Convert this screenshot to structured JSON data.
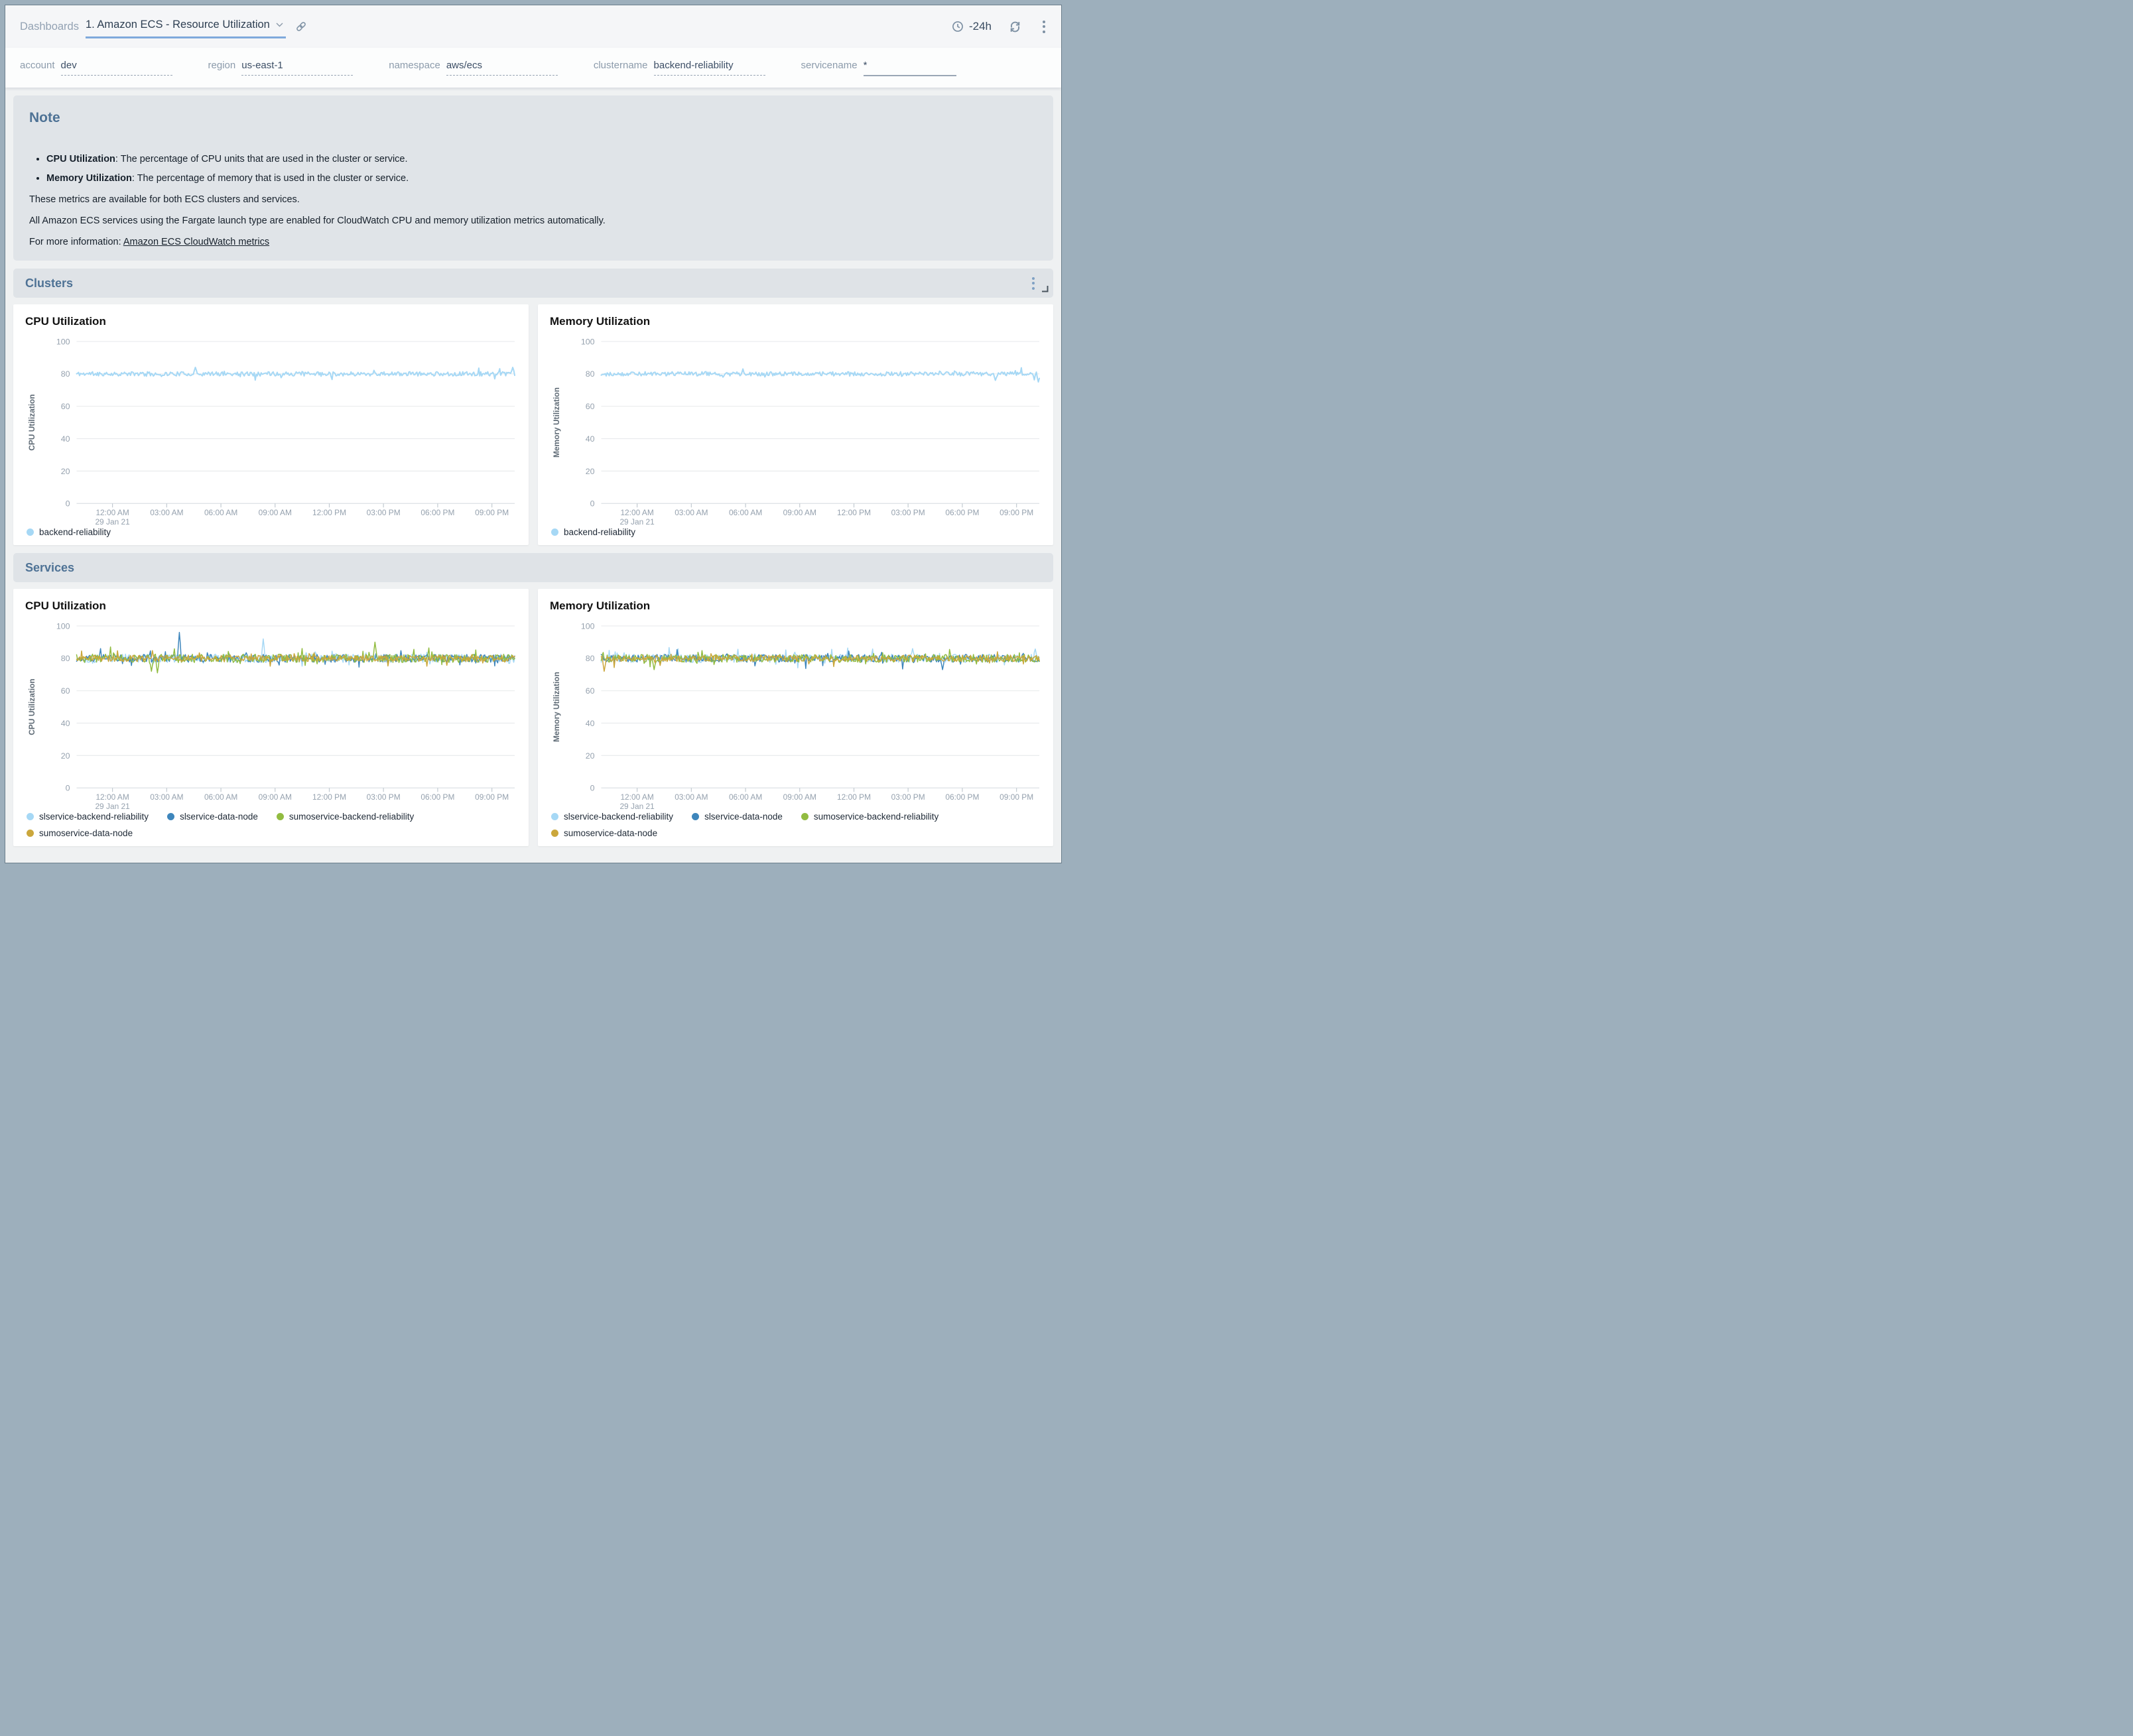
{
  "header": {
    "breadcrumb": "Dashboards",
    "title": "1. Amazon ECS - Resource Utilization",
    "time_range": "-24h",
    "icons": [
      "chevron-down-icon",
      "link-icon",
      "clock-icon",
      "refresh-icon",
      "kebab-menu-icon"
    ]
  },
  "filters": [
    {
      "label": "account",
      "value": "dev",
      "underline": "dashed"
    },
    {
      "label": "region",
      "value": "us-east-1",
      "underline": "dashed"
    },
    {
      "label": "namespace",
      "value": "aws/ecs",
      "underline": "dashed"
    },
    {
      "label": "clustername",
      "value": "backend-reliability",
      "underline": "dashed"
    },
    {
      "label": "servicename",
      "value": "*",
      "underline": "solid"
    }
  ],
  "note": {
    "title": "Note",
    "bullets": [
      {
        "term": "CPU Utilization",
        "text": ": The percentage of CPU units that are used in the cluster or service."
      },
      {
        "term": "Memory Utilization",
        "text": ": The percentage of memory that is used in the cluster or service."
      }
    ],
    "paragraphs": [
      "These metrics are available for both ECS clusters and services.",
      "All Amazon ECS services using the Fargate launch type are enabled for CloudWatch CPU and memory utilization metrics automatically."
    ],
    "more_info_prefix": "For more information: ",
    "link_text": "Amazon ECS CloudWatch metrics"
  },
  "sections": [
    {
      "title": "Clusters"
    },
    {
      "title": "Services"
    }
  ],
  "colors": {
    "accent_underline": "#7FA9DC",
    "heading_blue": "#4E7295",
    "series_light_blue": "#A6D8F5",
    "series_dark_blue": "#3E86BC",
    "series_green": "#92BC41",
    "series_gold": "#CBA73C"
  },
  "chart_data": [
    {
      "id": "clusters-cpu",
      "type": "line",
      "title": "CPU Utilization",
      "ylabel": "CPU Utilization",
      "ylim": [
        0,
        100
      ],
      "yticks": [
        100,
        80,
        60,
        40,
        20,
        0
      ],
      "xticks": [
        "12:00 AM",
        "03:00 AM",
        "06:00 AM",
        "09:00 AM",
        "12:00 PM",
        "03:00 PM",
        "06:00 PM",
        "09:00 PM"
      ],
      "x_start_sublabel": "29 Jan 21",
      "grid": true,
      "legend_position": "bottom-left",
      "series": [
        {
          "name": "backend-reliability",
          "color": "#A6D8F5",
          "approx_mean": 80,
          "approx_range": [
            77,
            84
          ],
          "noise": 1.3,
          "seed": 11,
          "events": [
            {
              "t": 0.27,
              "v": 84
            },
            {
              "t": 0.995,
              "v": 84
            }
          ]
        }
      ]
    },
    {
      "id": "clusters-memory",
      "type": "line",
      "title": "Memory Utilization",
      "ylabel": "Memory Utilization",
      "ylim": [
        0,
        100
      ],
      "yticks": [
        100,
        80,
        60,
        40,
        20,
        0
      ],
      "xticks": [
        "12:00 AM",
        "03:00 AM",
        "06:00 AM",
        "09:00 AM",
        "12:00 PM",
        "03:00 PM",
        "06:00 PM",
        "09:00 PM"
      ],
      "x_start_sublabel": "29 Jan 21",
      "grid": true,
      "legend_position": "bottom-left",
      "series": [
        {
          "name": "backend-reliability",
          "color": "#A6D8F5",
          "approx_mean": 80,
          "approx_range": [
            76,
            83
          ],
          "noise": 1.3,
          "seed": 29,
          "events": [
            {
              "t": 0.9,
              "v": 76
            },
            {
              "t": 1.0,
              "v": 75
            }
          ]
        }
      ]
    },
    {
      "id": "services-cpu",
      "type": "line",
      "title": "CPU Utilization",
      "ylabel": "CPU Utilization",
      "ylim": [
        0,
        100
      ],
      "yticks": [
        100,
        80,
        60,
        40,
        20,
        0
      ],
      "xticks": [
        "12:00 AM",
        "03:00 AM",
        "06:00 AM",
        "09:00 AM",
        "12:00 PM",
        "03:00 PM",
        "06:00 PM",
        "09:00 PM"
      ],
      "x_start_sublabel": "29 Jan 21",
      "grid": true,
      "legend_position": "bottom-left",
      "series": [
        {
          "name": "slservice-backend-reliability",
          "color": "#A6D8F5",
          "approx_mean": 80,
          "approx_range": [
            74,
            88
          ],
          "noise": 2.6,
          "seed": 101,
          "events": [
            {
              "t": 0.425,
              "v": 92
            }
          ]
        },
        {
          "name": "slservice-data-node",
          "color": "#3E86BC",
          "approx_mean": 80,
          "approx_range": [
            74,
            88
          ],
          "noise": 2.4,
          "seed": 202,
          "events": [
            {
              "t": 0.235,
              "v": 96
            }
          ]
        },
        {
          "name": "sumoservice-backend-reliability",
          "color": "#92BC41",
          "approx_mean": 80,
          "approx_range": [
            72,
            88
          ],
          "noise": 2.6,
          "seed": 303,
          "events": [
            {
              "t": 0.17,
              "v": 72
            },
            {
              "t": 0.185,
              "v": 71
            },
            {
              "t": 0.68,
              "v": 90
            }
          ]
        },
        {
          "name": "sumoservice-data-node",
          "color": "#CBA73C",
          "approx_mean": 80,
          "approx_range": [
            75,
            86
          ],
          "noise": 2.0,
          "seed": 404,
          "events": []
        }
      ]
    },
    {
      "id": "services-memory",
      "type": "line",
      "title": "Memory Utilization",
      "ylabel": "Memory Utilization",
      "ylim": [
        0,
        100
      ],
      "yticks": [
        100,
        80,
        60,
        40,
        20,
        0
      ],
      "xticks": [
        "12:00 AM",
        "03:00 AM",
        "06:00 AM",
        "09:00 AM",
        "12:00 PM",
        "03:00 PM",
        "06:00 PM",
        "09:00 PM"
      ],
      "x_start_sublabel": "29 Jan 21",
      "grid": true,
      "legend_position": "bottom-left",
      "series": [
        {
          "name": "slservice-backend-reliability",
          "color": "#A6D8F5",
          "approx_mean": 80,
          "approx_range": [
            74,
            87
          ],
          "noise": 2.6,
          "seed": 505,
          "events": [
            {
              "t": 0.71,
              "v": 86
            }
          ]
        },
        {
          "name": "slservice-data-node",
          "color": "#3E86BC",
          "approx_mean": 80,
          "approx_range": [
            73,
            86
          ],
          "noise": 2.4,
          "seed": 606,
          "events": [
            {
              "t": 0.78,
              "v": 73
            }
          ]
        },
        {
          "name": "sumoservice-backend-reliability",
          "color": "#92BC41",
          "approx_mean": 80,
          "approx_range": [
            73,
            87
          ],
          "noise": 2.5,
          "seed": 707,
          "events": [
            {
              "t": 0.12,
              "v": 73
            }
          ]
        },
        {
          "name": "sumoservice-data-node",
          "color": "#CBA73C",
          "approx_mean": 80,
          "approx_range": [
            72,
            85
          ],
          "noise": 2.0,
          "seed": 808,
          "events": [
            {
              "t": 0.006,
              "v": 72
            }
          ]
        }
      ]
    }
  ]
}
